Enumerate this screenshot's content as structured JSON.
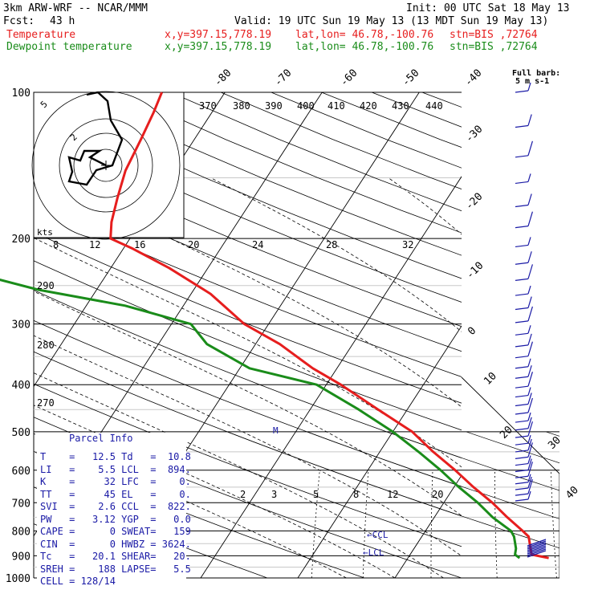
{
  "header": {
    "model": "3km ARW-WRF -- NCAR/MMM",
    "init": "Init: 00 UTC Sat 18 May 13",
    "fcst_label": "Fcst:",
    "fcst_value": "43 h",
    "valid": "Valid: 19 UTC Sun 19 May 13 (13 MDT Sun 19 May 13)",
    "temp_label": "Temperature",
    "dew_label": "Dewpoint temperature",
    "xy": "x,y=397.15,778.19",
    "latlon": "lat,lon= 46.78,-100.76",
    "stn": "stn=BIS ,72764"
  },
  "colors": {
    "temperature": "#e61e1e",
    "dewpoint": "#1a8c1a",
    "parcel_text": "#1a1aa6",
    "annotation": "#1a1aa6"
  },
  "barb_legend": {
    "line1": "Full barb:",
    "line2": "5 m s-1"
  },
  "parcel": {
    "title": "Parcel Info",
    "rows": [
      {
        "k1": "T",
        "v1": "12.5",
        "k2": "Td",
        "v2": "10.8"
      },
      {
        "k1": "LI",
        "v1": "5.5",
        "k2": "LCL",
        "v2": "894."
      },
      {
        "k1": "K",
        "v1": "32",
        "k2": "LFC",
        "v2": "0."
      },
      {
        "k1": "TT",
        "v1": "45",
        "k2": "EL",
        "v2": "0."
      },
      {
        "k1": "SVI",
        "v1": "2.6",
        "k2": "CCL",
        "v2": "822."
      },
      {
        "k1": "PW",
        "v1": "3.12",
        "k2": "YGP",
        "v2": "0.0"
      },
      {
        "k1": "CAPE",
        "v1": "0",
        "k2": "SWEAT",
        "v2": "159"
      },
      {
        "k1": "CIN",
        "v1": "0",
        "k2": "HWBZ",
        "v2": "3624."
      },
      {
        "k1": "Tc",
        "v1": "20.1",
        "k2": "SHEAR",
        "v2": "20."
      },
      {
        "k1": "SREH",
        "v1": "188",
        "k2": "LAPSE",
        "v2": "5.5"
      },
      {
        "k1": "CELL",
        "v1": "128/14",
        "k2": "",
        "v2": ""
      }
    ]
  },
  "chart_data": {
    "type": "line",
    "pressure_axis": {
      "scale": "log",
      "range": [
        1000,
        100
      ],
      "ticks": [
        100,
        200,
        300,
        400,
        500,
        600,
        700,
        800,
        900,
        1000
      ]
    },
    "temperature_axis_labels": [
      "-80",
      "-70",
      "-60",
      "-50",
      "-40",
      "-30",
      "-20",
      "-10",
      "0",
      "10",
      "20",
      "30",
      "40"
    ],
    "theta_e_labels": [
      "370",
      "380",
      "390",
      "400",
      "410",
      "420",
      "430",
      "440"
    ],
    "theta_labels": [
      "290",
      "280",
      "270"
    ],
    "mixing_ratio_labels": [
      "2",
      "3",
      "5",
      "8",
      "12",
      "20"
    ],
    "hodograph_speed_labels": [
      "8",
      "12",
      "16",
      "20",
      "24",
      "28",
      "32"
    ],
    "hodograph_units": "kts",
    "hodograph_ring_labels": [
      "5",
      "2"
    ],
    "markers": [
      "CCL",
      "LCL",
      "M"
    ],
    "series": [
      {
        "name": "Temperature",
        "p": [
          910,
          895,
          870,
          822,
          800,
          750,
          700,
          650,
          600,
          550,
          500,
          450,
          400,
          370,
          330,
          300,
          260,
          230,
          210,
          200,
          185,
          165,
          145,
          125,
          110,
          100
        ],
        "t": [
          14.5,
          12.5,
          12.0,
          11.0,
          10.0,
          7.5,
          5.0,
          2.0,
          -1.0,
          -4.5,
          -8.0,
          -13.0,
          -18.5,
          -22.5,
          -27.5,
          -32.5,
          -38.0,
          -44.0,
          -49.0,
          -52.0,
          -53.0,
          -54.0,
          -55.0,
          -55.5,
          -56.0,
          -56.5
        ]
      },
      {
        "name": "Dewpoint temperature",
        "p": [
          910,
          895,
          870,
          822,
          800,
          750,
          700,
          650,
          600,
          550,
          500,
          450,
          400,
          370,
          330,
          300,
          275,
          255,
          235,
          220,
          200,
          185,
          165,
          145,
          125,
          110,
          100
        ],
        "td": [
          11.5,
          10.8,
          10.5,
          9.5,
          8.8,
          6.0,
          3.5,
          0.5,
          -2.5,
          -6.0,
          -10.0,
          -15.0,
          -21.0,
          -29.0,
          -35.0,
          -38.0,
          -46.0,
          -56.0,
          -64.0,
          -67.0,
          -70.0,
          -74.0,
          -78.0,
          -81.0,
          -85.0,
          -88.0,
          -89.0
        ]
      }
    ]
  }
}
